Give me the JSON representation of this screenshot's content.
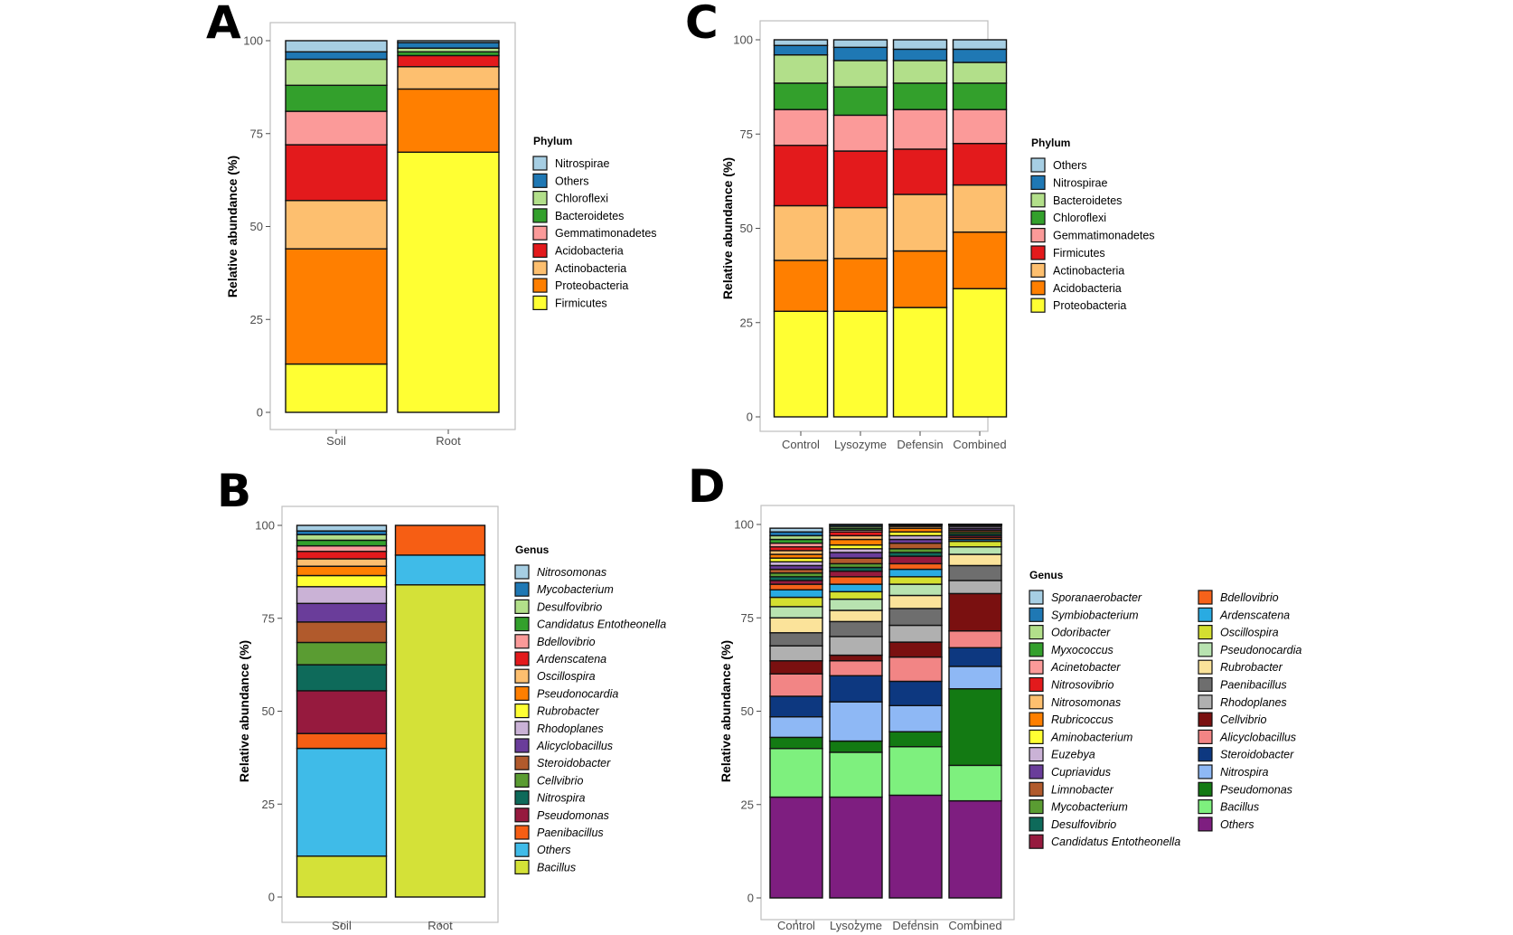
{
  "panels": [
    {
      "id": "A",
      "letter": "A"
    },
    {
      "id": "B",
      "letter": "B"
    },
    {
      "id": "C",
      "letter": "C"
    },
    {
      "id": "D",
      "letter": "D"
    }
  ],
  "chart_data": [
    {
      "panel": "A",
      "type": "bar",
      "stacked": true,
      "title": "",
      "xlabel": "",
      "ylabel": "Relative abundance (%)",
      "ylim": [
        0,
        100
      ],
      "yticks": [
        0,
        25,
        50,
        75,
        100
      ],
      "grid": false,
      "legend_title": "Phylum",
      "legend_italic": false,
      "legend_placement": "right",
      "categories": [
        "Soil",
        "Root"
      ],
      "series": [
        {
          "name": "Firmicutes",
          "color": "#ffff33",
          "values": [
            13,
            70
          ]
        },
        {
          "name": "Proteobacteria",
          "color": "#ff7f00",
          "values": [
            31,
            17
          ]
        },
        {
          "name": "Actinobacteria",
          "color": "#fdbf6f",
          "values": [
            13,
            6
          ]
        },
        {
          "name": "Acidobacteria",
          "color": "#e31a1c",
          "values": [
            15,
            3
          ]
        },
        {
          "name": "Gemmatimonadetes",
          "color": "#fb9a99",
          "values": [
            9,
            0
          ]
        },
        {
          "name": "Bacteroidetes",
          "color": "#33a02c",
          "values": [
            7,
            1
          ]
        },
        {
          "name": "Chloroflexi",
          "color": "#b2df8a",
          "values": [
            7,
            1
          ]
        },
        {
          "name": "Others",
          "color": "#1f78b4",
          "values": [
            2,
            1.5
          ]
        },
        {
          "name": "Nitrospirae",
          "color": "#a6cee3",
          "values": [
            3,
            0.5
          ]
        }
      ]
    },
    {
      "panel": "B",
      "type": "bar",
      "stacked": true,
      "title": "",
      "xlabel": "",
      "ylabel": "Relative abundance (%)",
      "ylim": [
        0,
        100
      ],
      "yticks": [
        0,
        25,
        50,
        75,
        100
      ],
      "grid": false,
      "legend_title": "Genus",
      "legend_italic": true,
      "legend_placement": "right",
      "categories": [
        "Soil",
        "Root"
      ],
      "series": [
        {
          "name": "Bacillus",
          "color": "#d4e138",
          "values": [
            11,
            84
          ]
        },
        {
          "name": "Others",
          "color": "#3fbbe8",
          "values": [
            29,
            8
          ]
        },
        {
          "name": "Paenibacillus",
          "color": "#f65e14",
          "values": [
            4,
            8
          ]
        },
        {
          "name": "Pseudomonas",
          "color": "#961a3e",
          "values": [
            11.5,
            0
          ]
        },
        {
          "name": "Nitrospira",
          "color": "#0e6a5a",
          "values": [
            7,
            0
          ]
        },
        {
          "name": "Cellvibrio",
          "color": "#5a9c32",
          "values": [
            6,
            0
          ]
        },
        {
          "name": "Steroidobacter",
          "color": "#b15a2c",
          "values": [
            5.5,
            0
          ]
        },
        {
          "name": "Alicyclobacillus",
          "color": "#6a3d9a",
          "values": [
            5,
            0
          ]
        },
        {
          "name": "Rhodoplanes",
          "color": "#cab2d6",
          "values": [
            4.5,
            0
          ]
        },
        {
          "name": "Rubrobacter",
          "color": "#ffff33",
          "values": [
            3,
            0
          ]
        },
        {
          "name": "Pseudonocardia",
          "color": "#ff7f00",
          "values": [
            2.5,
            0
          ]
        },
        {
          "name": "Oscillospira",
          "color": "#fdbf6f",
          "values": [
            2,
            0
          ]
        },
        {
          "name": "Ardenscatena",
          "color": "#e31a1c",
          "values": [
            2,
            0
          ]
        },
        {
          "name": "Bdellovibrio",
          "color": "#fb9a99",
          "values": [
            1.5,
            0
          ]
        },
        {
          "name": "Candidatus Entotheonella",
          "color": "#33a02c",
          "values": [
            1.5,
            0
          ]
        },
        {
          "name": "Desulfovibrio",
          "color": "#b2df8a",
          "values": [
            1.5,
            0
          ]
        },
        {
          "name": "Mycobacterium",
          "color": "#1f78b4",
          "values": [
            1,
            0
          ]
        },
        {
          "name": "Nitrosomonas",
          "color": "#a6cee3",
          "values": [
            1.5,
            0
          ]
        }
      ]
    },
    {
      "panel": "C",
      "type": "bar",
      "stacked": true,
      "title": "",
      "xlabel": "",
      "ylabel": "Relative abundance (%)",
      "ylim": [
        0,
        100
      ],
      "yticks": [
        0,
        25,
        50,
        75,
        100
      ],
      "grid": false,
      "legend_title": "Phylum",
      "legend_italic": false,
      "legend_placement": "right",
      "categories": [
        "Control",
        "Lysozyme",
        "Defensin",
        "Combined"
      ],
      "series": [
        {
          "name": "Proteobacteria",
          "color": "#ffff33",
          "values": [
            28,
            28,
            29,
            34
          ]
        },
        {
          "name": "Acidobacteria",
          "color": "#ff7f00",
          "values": [
            13.5,
            14,
            15,
            15
          ]
        },
        {
          "name": "Actinobacteria",
          "color": "#fdbf6f",
          "values": [
            14.5,
            13.5,
            15,
            12.5
          ]
        },
        {
          "name": "Firmicutes",
          "color": "#e31a1c",
          "values": [
            16,
            15,
            12,
            11
          ]
        },
        {
          "name": "Gemmatimonadetes",
          "color": "#fb9a99",
          "values": [
            9.5,
            9.5,
            10.5,
            9
          ]
        },
        {
          "name": "Chloroflexi",
          "color": "#33a02c",
          "values": [
            7,
            7.5,
            7,
            7
          ]
        },
        {
          "name": "Bacteroidetes",
          "color": "#b2df8a",
          "values": [
            7.5,
            7,
            6,
            5.5
          ]
        },
        {
          "name": "Nitrospirae",
          "color": "#1f78b4",
          "values": [
            2.5,
            3.5,
            3,
            3.5
          ]
        },
        {
          "name": "Others",
          "color": "#a6cee3",
          "values": [
            1.5,
            2,
            2.5,
            2.5
          ]
        }
      ]
    },
    {
      "panel": "D",
      "type": "bar",
      "stacked": true,
      "title": "",
      "xlabel": "",
      "ylabel": "Relative abundance (%)",
      "ylim": [
        0,
        100
      ],
      "yticks": [
        0,
        25,
        50,
        75,
        100
      ],
      "grid": false,
      "legend_title": "Genus",
      "legend_italic": true,
      "legend_placement": "right",
      "legend_columns": 2,
      "categories": [
        "Control",
        "Lysozyme",
        "Defensin",
        "Combined"
      ],
      "series": [
        {
          "name": "Others",
          "color": "#7e1e80",
          "values": [
            27,
            27,
            27.5,
            26
          ]
        },
        {
          "name": "Bacillus",
          "color": "#7ef07e",
          "values": [
            13,
            12,
            13,
            9.5
          ]
        },
        {
          "name": "Pseudomonas",
          "color": "#137a13",
          "values": [
            3,
            3,
            4,
            20.5
          ]
        },
        {
          "name": "Nitrospira",
          "color": "#8eb8f5",
          "values": [
            5.5,
            10.5,
            7,
            6
          ]
        },
        {
          "name": "Steroidobacter",
          "color": "#0d3880",
          "values": [
            5.5,
            7,
            6.5,
            5
          ]
        },
        {
          "name": "Alicyclobacillus",
          "color": "#f28585",
          "values": [
            6,
            4,
            6.5,
            4.5
          ]
        },
        {
          "name": "Cellvibrio",
          "color": "#7a1010",
          "values": [
            3.5,
            1.5,
            4,
            10
          ]
        },
        {
          "name": "Rhodoplanes",
          "color": "#b0b0b0",
          "values": [
            4,
            5,
            4.5,
            3.5
          ]
        },
        {
          "name": "Paenibacillus",
          "color": "#6e6e6e",
          "values": [
            3.5,
            4,
            4.5,
            4
          ]
        },
        {
          "name": "Rubrobacter",
          "color": "#fbe39a",
          "values": [
            4,
            3,
            3.5,
            3
          ]
        },
        {
          "name": "Pseudonocardia",
          "color": "#b8e3b0",
          "values": [
            3,
            3,
            3,
            2
          ]
        },
        {
          "name": "Oscillospira",
          "color": "#d4df30",
          "values": [
            2.5,
            2,
            2,
            1.5
          ]
        },
        {
          "name": "Ardenscatena",
          "color": "#29abe2",
          "values": [
            2,
            2,
            2,
            0.5
          ]
        },
        {
          "name": "Bdellovibrio",
          "color": "#f6621a",
          "values": [
            1.5,
            2,
            1.5,
            0.5
          ]
        },
        {
          "name": "Candidatus Entotheonella",
          "color": "#961a3e",
          "values": [
            1,
            1.5,
            2,
            0.5
          ]
        },
        {
          "name": "Desulfovibrio",
          "color": "#0e6a5a",
          "values": [
            1,
            1,
            1,
            0.5
          ]
        },
        {
          "name": "Mycobacterium",
          "color": "#5a9c32",
          "values": [
            1,
            1,
            1,
            0.5
          ]
        },
        {
          "name": "Limnobacter",
          "color": "#b15a2c",
          "values": [
            1,
            1.5,
            1.5,
            0.5
          ]
        },
        {
          "name": "Cupriavidus",
          "color": "#6a3d9a",
          "values": [
            1,
            1.5,
            1,
            0.5
          ]
        },
        {
          "name": "Euzebya",
          "color": "#cab2d6",
          "values": [
            1,
            1,
            1,
            0.5
          ]
        },
        {
          "name": "Aminobacterium",
          "color": "#ffff33",
          "values": [
            1,
            1,
            1,
            0.5
          ]
        },
        {
          "name": "Rubricoccus",
          "color": "#ff7f00",
          "values": [
            1,
            1.5,
            1,
            0.5
          ]
        },
        {
          "name": "Nitrosomonas",
          "color": "#fdbf6f",
          "values": [
            1,
            1,
            0.5,
            0.5
          ]
        },
        {
          "name": "Nitrosovibrio",
          "color": "#e31a1c",
          "values": [
            1,
            1,
            0.5,
            0.5
          ]
        },
        {
          "name": "Acinetobacter",
          "color": "#fb9a99",
          "values": [
            1,
            0.5,
            0.5,
            0.5
          ]
        },
        {
          "name": "Myxococcus",
          "color": "#33a02c",
          "values": [
            1,
            0.5,
            0.5,
            0.5
          ]
        },
        {
          "name": "Odoribacter",
          "color": "#b2df8a",
          "values": [
            1,
            0.5,
            0.5,
            0.5
          ]
        },
        {
          "name": "Symbiobacterium",
          "color": "#1f78b4",
          "values": [
            1,
            0.5,
            0.5,
            0.5
          ]
        },
        {
          "name": "Sporanaerobacter",
          "color": "#a6cee3",
          "values": [
            1,
            0.5,
            0.5,
            0.5
          ]
        }
      ]
    }
  ]
}
